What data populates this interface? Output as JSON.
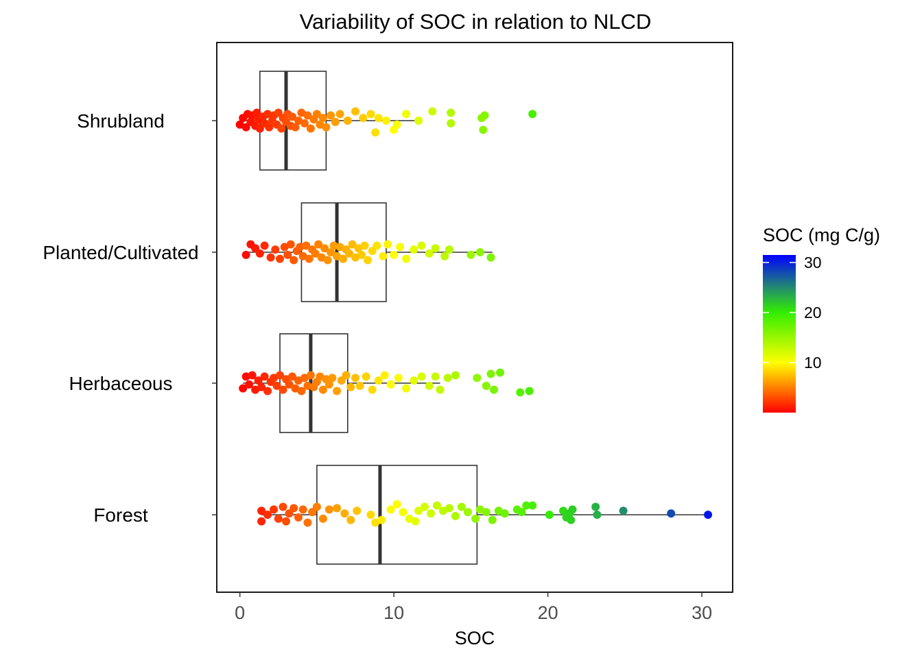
{
  "chart_data": {
    "type": "boxplot-jitter",
    "title": "Variability of SOC in relation to NLCD",
    "xlabel": "SOC",
    "ylabel": "",
    "xlim": [
      -1.5,
      32
    ],
    "x_ticks": [
      0,
      10,
      20,
      30
    ],
    "categories": [
      "Shrubland",
      "Planted/Cultivated",
      "Herbaceous",
      "Forest"
    ],
    "boxes": [
      {
        "category": "Shrubland",
        "q1": 1.3,
        "median": 3.0,
        "q3": 5.6,
        "whisker_low": 0.0,
        "whisker_high": 11.6
      },
      {
        "category": "Planted/Cultivated",
        "q1": 4.0,
        "median": 6.3,
        "q3": 9.5,
        "whisker_low": 0.4,
        "whisker_high": 16.4
      },
      {
        "category": "Herbaceous",
        "q1": 2.6,
        "median": 4.6,
        "q3": 7.0,
        "whisker_low": 0.2,
        "whisker_high": 13.0
      },
      {
        "category": "Forest",
        "q1": 5.0,
        "median": 9.1,
        "q3": 15.4,
        "whisker_low": 1.4,
        "whisker_high": 30.4
      }
    ],
    "points": {
      "Shrubland": [
        [
          0.0,
          -0.03
        ],
        [
          0.2,
          0.02
        ],
        [
          0.4,
          -0.05
        ],
        [
          0.5,
          0.05
        ],
        [
          0.7,
          -0.01
        ],
        [
          0.8,
          0.04
        ],
        [
          1.0,
          -0.04
        ],
        [
          1.1,
          0.06
        ],
        [
          1.2,
          0.01
        ],
        [
          1.3,
          -0.06
        ],
        [
          1.5,
          0.03
        ],
        [
          1.6,
          -0.02
        ],
        [
          1.8,
          0.05
        ],
        [
          1.9,
          -0.05
        ],
        [
          2.1,
          0.0
        ],
        [
          2.2,
          0.04
        ],
        [
          2.4,
          -0.03
        ],
        [
          2.5,
          0.06
        ],
        [
          2.7,
          -0.06
        ],
        [
          2.8,
          0.02
        ],
        [
          3.0,
          -0.01
        ],
        [
          3.1,
          0.05
        ],
        [
          3.3,
          -0.04
        ],
        [
          3.4,
          0.03
        ],
        [
          3.6,
          -0.05
        ],
        [
          3.8,
          0.0
        ],
        [
          4.0,
          0.06
        ],
        [
          4.2,
          -0.02
        ],
        [
          4.4,
          0.04
        ],
        [
          4.6,
          -0.06
        ],
        [
          4.8,
          0.01
        ],
        [
          5.0,
          0.05
        ],
        [
          5.2,
          -0.03
        ],
        [
          5.4,
          0.02
        ],
        [
          5.6,
          -0.05
        ],
        [
          5.9,
          0.04
        ],
        [
          6.2,
          -0.01
        ],
        [
          6.5,
          0.05
        ],
        [
          7.0,
          0.0
        ],
        [
          7.5,
          0.07
        ],
        [
          8.0,
          0.02
        ],
        [
          8.5,
          0.05
        ],
        [
          8.8,
          -0.09
        ],
        [
          9.0,
          0.02
        ],
        [
          9.5,
          0.0
        ],
        [
          10.0,
          -0.07
        ],
        [
          10.2,
          -0.03
        ],
        [
          10.8,
          0.05
        ],
        [
          11.6,
          0.0
        ],
        [
          12.5,
          0.07
        ],
        [
          13.7,
          0.06
        ],
        [
          13.7,
          -0.02
        ],
        [
          15.7,
          0.02
        ],
        [
          15.8,
          -0.07
        ],
        [
          15.9,
          0.04
        ],
        [
          19.0,
          0.05
        ]
      ],
      "Planted/Cultivated": [
        [
          0.4,
          -0.02
        ],
        [
          0.7,
          0.06
        ],
        [
          1.0,
          0.03
        ],
        [
          1.3,
          -0.01
        ],
        [
          1.6,
          0.05
        ],
        [
          2.0,
          -0.04
        ],
        [
          2.3,
          0.02
        ],
        [
          2.6,
          -0.05
        ],
        [
          2.9,
          0.04
        ],
        [
          3.1,
          -0.02
        ],
        [
          3.3,
          0.06
        ],
        [
          3.5,
          -0.06
        ],
        [
          3.7,
          0.01
        ],
        [
          3.9,
          0.04
        ],
        [
          4.1,
          -0.03
        ],
        [
          4.3,
          0.05
        ],
        [
          4.5,
          -0.05
        ],
        [
          4.7,
          0.02
        ],
        [
          4.9,
          -0.01
        ],
        [
          5.1,
          0.06
        ],
        [
          5.3,
          -0.04
        ],
        [
          5.5,
          0.03
        ],
        [
          5.7,
          -0.06
        ],
        [
          5.9,
          0.0
        ],
        [
          6.1,
          0.05
        ],
        [
          6.3,
          -0.03
        ],
        [
          6.5,
          0.04
        ],
        [
          6.7,
          -0.05
        ],
        [
          6.9,
          0.02
        ],
        [
          7.1,
          -0.01
        ],
        [
          7.3,
          0.06
        ],
        [
          7.5,
          -0.04
        ],
        [
          7.7,
          0.03
        ],
        [
          7.9,
          -0.02
        ],
        [
          8.1,
          0.05
        ],
        [
          8.3,
          -0.06
        ],
        [
          8.6,
          0.01
        ],
        [
          8.9,
          0.05
        ],
        [
          9.3,
          -0.03
        ],
        [
          9.6,
          0.06
        ],
        [
          10.0,
          -0.02
        ],
        [
          10.4,
          0.04
        ],
        [
          10.8,
          -0.05
        ],
        [
          11.3,
          0.02
        ],
        [
          11.8,
          0.05
        ],
        [
          12.3,
          -0.01
        ],
        [
          12.7,
          0.03
        ],
        [
          13.3,
          -0.03
        ],
        [
          13.6,
          0.02
        ],
        [
          15.0,
          -0.02
        ],
        [
          15.6,
          0.0
        ],
        [
          16.3,
          -0.04
        ]
      ],
      "Herbaceous": [
        [
          0.2,
          -0.04
        ],
        [
          0.4,
          0.05
        ],
        [
          0.6,
          -0.01
        ],
        [
          0.8,
          0.06
        ],
        [
          1.0,
          -0.05
        ],
        [
          1.2,
          0.02
        ],
        [
          1.4,
          -0.03
        ],
        [
          1.6,
          0.05
        ],
        [
          1.8,
          -0.06
        ],
        [
          2.0,
          0.01
        ],
        [
          2.2,
          0.04
        ],
        [
          2.4,
          -0.02
        ],
        [
          2.6,
          0.06
        ],
        [
          2.8,
          -0.05
        ],
        [
          3.0,
          0.03
        ],
        [
          3.2,
          -0.01
        ],
        [
          3.4,
          0.05
        ],
        [
          3.6,
          -0.04
        ],
        [
          3.8,
          0.02
        ],
        [
          4.0,
          -0.06
        ],
        [
          4.2,
          0.04
        ],
        [
          4.4,
          -0.02
        ],
        [
          4.6,
          0.06
        ],
        [
          4.8,
          -0.03
        ],
        [
          5.0,
          0.01
        ],
        [
          5.2,
          0.05
        ],
        [
          5.4,
          -0.05
        ],
        [
          5.6,
          0.03
        ],
        [
          5.8,
          -0.01
        ],
        [
          6.0,
          0.04
        ],
        [
          6.3,
          -0.06
        ],
        [
          6.6,
          0.02
        ],
        [
          6.9,
          0.06
        ],
        [
          7.2,
          -0.03
        ],
        [
          7.5,
          0.04
        ],
        [
          7.8,
          -0.02
        ],
        [
          8.2,
          0.05
        ],
        [
          8.6,
          -0.05
        ],
        [
          9.0,
          0.02
        ],
        [
          9.4,
          0.06
        ],
        [
          9.8,
          -0.01
        ],
        [
          10.3,
          0.04
        ],
        [
          10.8,
          -0.04
        ],
        [
          11.3,
          0.02
        ],
        [
          11.8,
          0.05
        ],
        [
          12.3,
          -0.02
        ],
        [
          12.7,
          0.05
        ],
        [
          13.0,
          -0.05
        ],
        [
          13.5,
          0.04
        ],
        [
          14.0,
          0.06
        ],
        [
          15.4,
          0.04
        ],
        [
          16.0,
          -0.02
        ],
        [
          16.3,
          0.07
        ],
        [
          16.5,
          -0.05
        ],
        [
          16.9,
          0.08
        ],
        [
          18.2,
          -0.07
        ],
        [
          18.8,
          -0.06
        ]
      ],
      "Forest": [
        [
          1.4,
          -0.05
        ],
        [
          1.4,
          0.03
        ],
        [
          1.8,
          0.0
        ],
        [
          2.2,
          0.04
        ],
        [
          2.5,
          -0.03
        ],
        [
          2.8,
          0.06
        ],
        [
          3.0,
          -0.05
        ],
        [
          3.2,
          0.01
        ],
        [
          3.5,
          0.05
        ],
        [
          3.8,
          -0.02
        ],
        [
          4.1,
          0.04
        ],
        [
          4.4,
          -0.06
        ],
        [
          4.7,
          0.02
        ],
        [
          5.0,
          0.06
        ],
        [
          5.4,
          -0.03
        ],
        [
          5.8,
          0.04
        ],
        [
          6.3,
          0.05
        ],
        [
          6.8,
          0.01
        ],
        [
          7.2,
          -0.04
        ],
        [
          7.6,
          0.03
        ],
        [
          8.5,
          0.0
        ],
        [
          8.8,
          -0.06
        ],
        [
          9.2,
          -0.04
        ],
        [
          9.8,
          0.04
        ],
        [
          10.2,
          0.08
        ],
        [
          10.6,
          0.02
        ],
        [
          11.0,
          -0.03
        ],
        [
          11.4,
          -0.05
        ],
        [
          11.6,
          0.03
        ],
        [
          12.0,
          0.06
        ],
        [
          12.4,
          0.01
        ],
        [
          12.8,
          0.07
        ],
        [
          13.2,
          0.03
        ],
        [
          13.6,
          0.05
        ],
        [
          14.0,
          -0.01
        ],
        [
          14.4,
          0.06
        ],
        [
          14.8,
          0.02
        ],
        [
          15.3,
          -0.03
        ],
        [
          15.6,
          0.04
        ],
        [
          16.0,
          0.02
        ],
        [
          16.4,
          -0.04
        ],
        [
          16.8,
          0.03
        ],
        [
          17.2,
          0.01
        ],
        [
          18.0,
          0.04
        ],
        [
          18.3,
          0.02
        ],
        [
          18.6,
          0.07
        ],
        [
          19.0,
          0.07
        ],
        [
          20.1,
          0.0
        ],
        [
          21.0,
          0.03
        ],
        [
          21.2,
          -0.02
        ],
        [
          21.4,
          0.01
        ],
        [
          21.5,
          -0.04
        ],
        [
          21.6,
          0.04
        ],
        [
          23.1,
          0.06
        ],
        [
          23.2,
          0.0
        ],
        [
          24.9,
          0.03
        ],
        [
          28.0,
          0.01
        ],
        [
          30.4,
          0.0
        ]
      ]
    },
    "legend": {
      "title": "SOC (mg C/g)",
      "ticks": [
        10,
        20,
        30
      ],
      "min": 0,
      "max": 31.5,
      "colors": [
        {
          "value": 0,
          "color": "#ff0000"
        },
        {
          "value": 10,
          "color": "#ffff00"
        },
        {
          "value": 20,
          "color": "#33ee00"
        },
        {
          "value": 25,
          "color": "#228b70"
        },
        {
          "value": 31.5,
          "color": "#0000ff"
        }
      ]
    }
  }
}
